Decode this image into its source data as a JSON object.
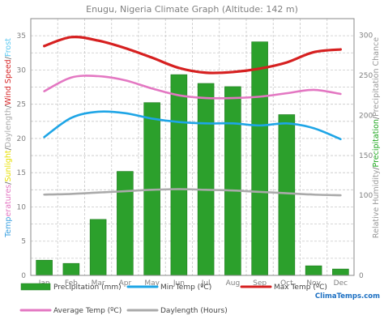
{
  "chart_data": {
    "type": "bar",
    "title": "Enugu, Nigeria Climate Graph (Altitude: 142 m)",
    "categories": [
      "Jan",
      "Feb",
      "Mar",
      "Apr",
      "May",
      "Jun",
      "Jul",
      "Aug",
      "Sep",
      "Oct",
      "Nov",
      "Dec"
    ],
    "left_axis": {
      "label_parts": [
        {
          "text": "Temp",
          "color": "#3aa0e0"
        },
        {
          "text": "eratures",
          "color": "#e377c2"
        },
        {
          "text": "/",
          "color": "#666666"
        },
        {
          "text": "Sunlight",
          "color": "#e8e000"
        },
        {
          "text": "/",
          "color": "#666666"
        },
        {
          "text": "Daylength",
          "color": "#aaaaaa"
        },
        {
          "text": "/",
          "color": "#666666"
        },
        {
          "text": "Wind Speed",
          "color": "#d62728"
        },
        {
          "text": "/",
          "color": "#666666"
        },
        {
          "text": "Frost",
          "color": "#5bc8f0"
        }
      ],
      "range": [
        0,
        37.5
      ],
      "ticks": [
        0,
        5,
        10,
        15,
        20,
        25,
        30,
        35
      ]
    },
    "right_axis": {
      "label_parts": [
        {
          "text": "Relative Humidity",
          "color": "#999999"
        },
        {
          "text": "/",
          "color": "#666666"
        },
        {
          "text": "Precipitation",
          "color": "#22a822"
        },
        {
          "text": "/",
          "color": "#666666"
        },
        {
          "text": "Precipitation Chance",
          "color": "#999999"
        }
      ],
      "range": [
        0,
        321
      ],
      "ticks": [
        0,
        100,
        150,
        200,
        250,
        300
      ]
    },
    "precipitation_mm": [
      19,
      15,
      70,
      130,
      216,
      251,
      240,
      236,
      292,
      201,
      12,
      8
    ],
    "series": [
      {
        "name": "Min Temp (ºC)",
        "color": "#1ea5e6",
        "values": [
          20.2,
          23.0,
          23.9,
          23.7,
          22.9,
          22.4,
          22.2,
          22.2,
          21.9,
          22.2,
          21.5,
          19.9
        ]
      },
      {
        "name": "Max Temp (ºC)",
        "color": "#d62020",
        "values": [
          33.5,
          34.8,
          34.3,
          33.2,
          31.8,
          30.3,
          29.6,
          29.7,
          30.2,
          31.1,
          32.6,
          33.0
        ]
      },
      {
        "name": "Average Temp (ºC)",
        "color": "#e377c2",
        "values": [
          26.9,
          28.9,
          29.1,
          28.5,
          27.3,
          26.3,
          25.9,
          25.9,
          26.1,
          26.6,
          27.1,
          26.5
        ]
      },
      {
        "name": "Daylength (Hours)",
        "color": "#aaaaaa",
        "values": [
          11.8,
          11.9,
          12.1,
          12.3,
          12.5,
          12.6,
          12.5,
          12.4,
          12.2,
          12.0,
          11.8,
          11.7
        ]
      }
    ],
    "bar_color": "#2ca02c",
    "grid": true,
    "legend": {
      "position": "bottom",
      "items": [
        {
          "label": "Precipitation (mm)",
          "kind": "bar",
          "color": "#2ca02c"
        },
        {
          "label": "Min Temp (ºC)",
          "kind": "line",
          "color": "#1ea5e6"
        },
        {
          "label": "Max Temp (ºC)",
          "kind": "line",
          "color": "#d62020"
        },
        {
          "label": "Average Temp (ºC)",
          "kind": "line",
          "color": "#e377c2"
        },
        {
          "label": "Daylength (Hours)",
          "kind": "line",
          "color": "#aaaaaa"
        }
      ]
    },
    "brand": {
      "text_a": "Clima",
      "text_b": "Temps",
      "text_c": ".com",
      "color_a": "#1b6fc2",
      "color_b": "#1b6fc2",
      "color_c": "#1b6fc2"
    }
  }
}
